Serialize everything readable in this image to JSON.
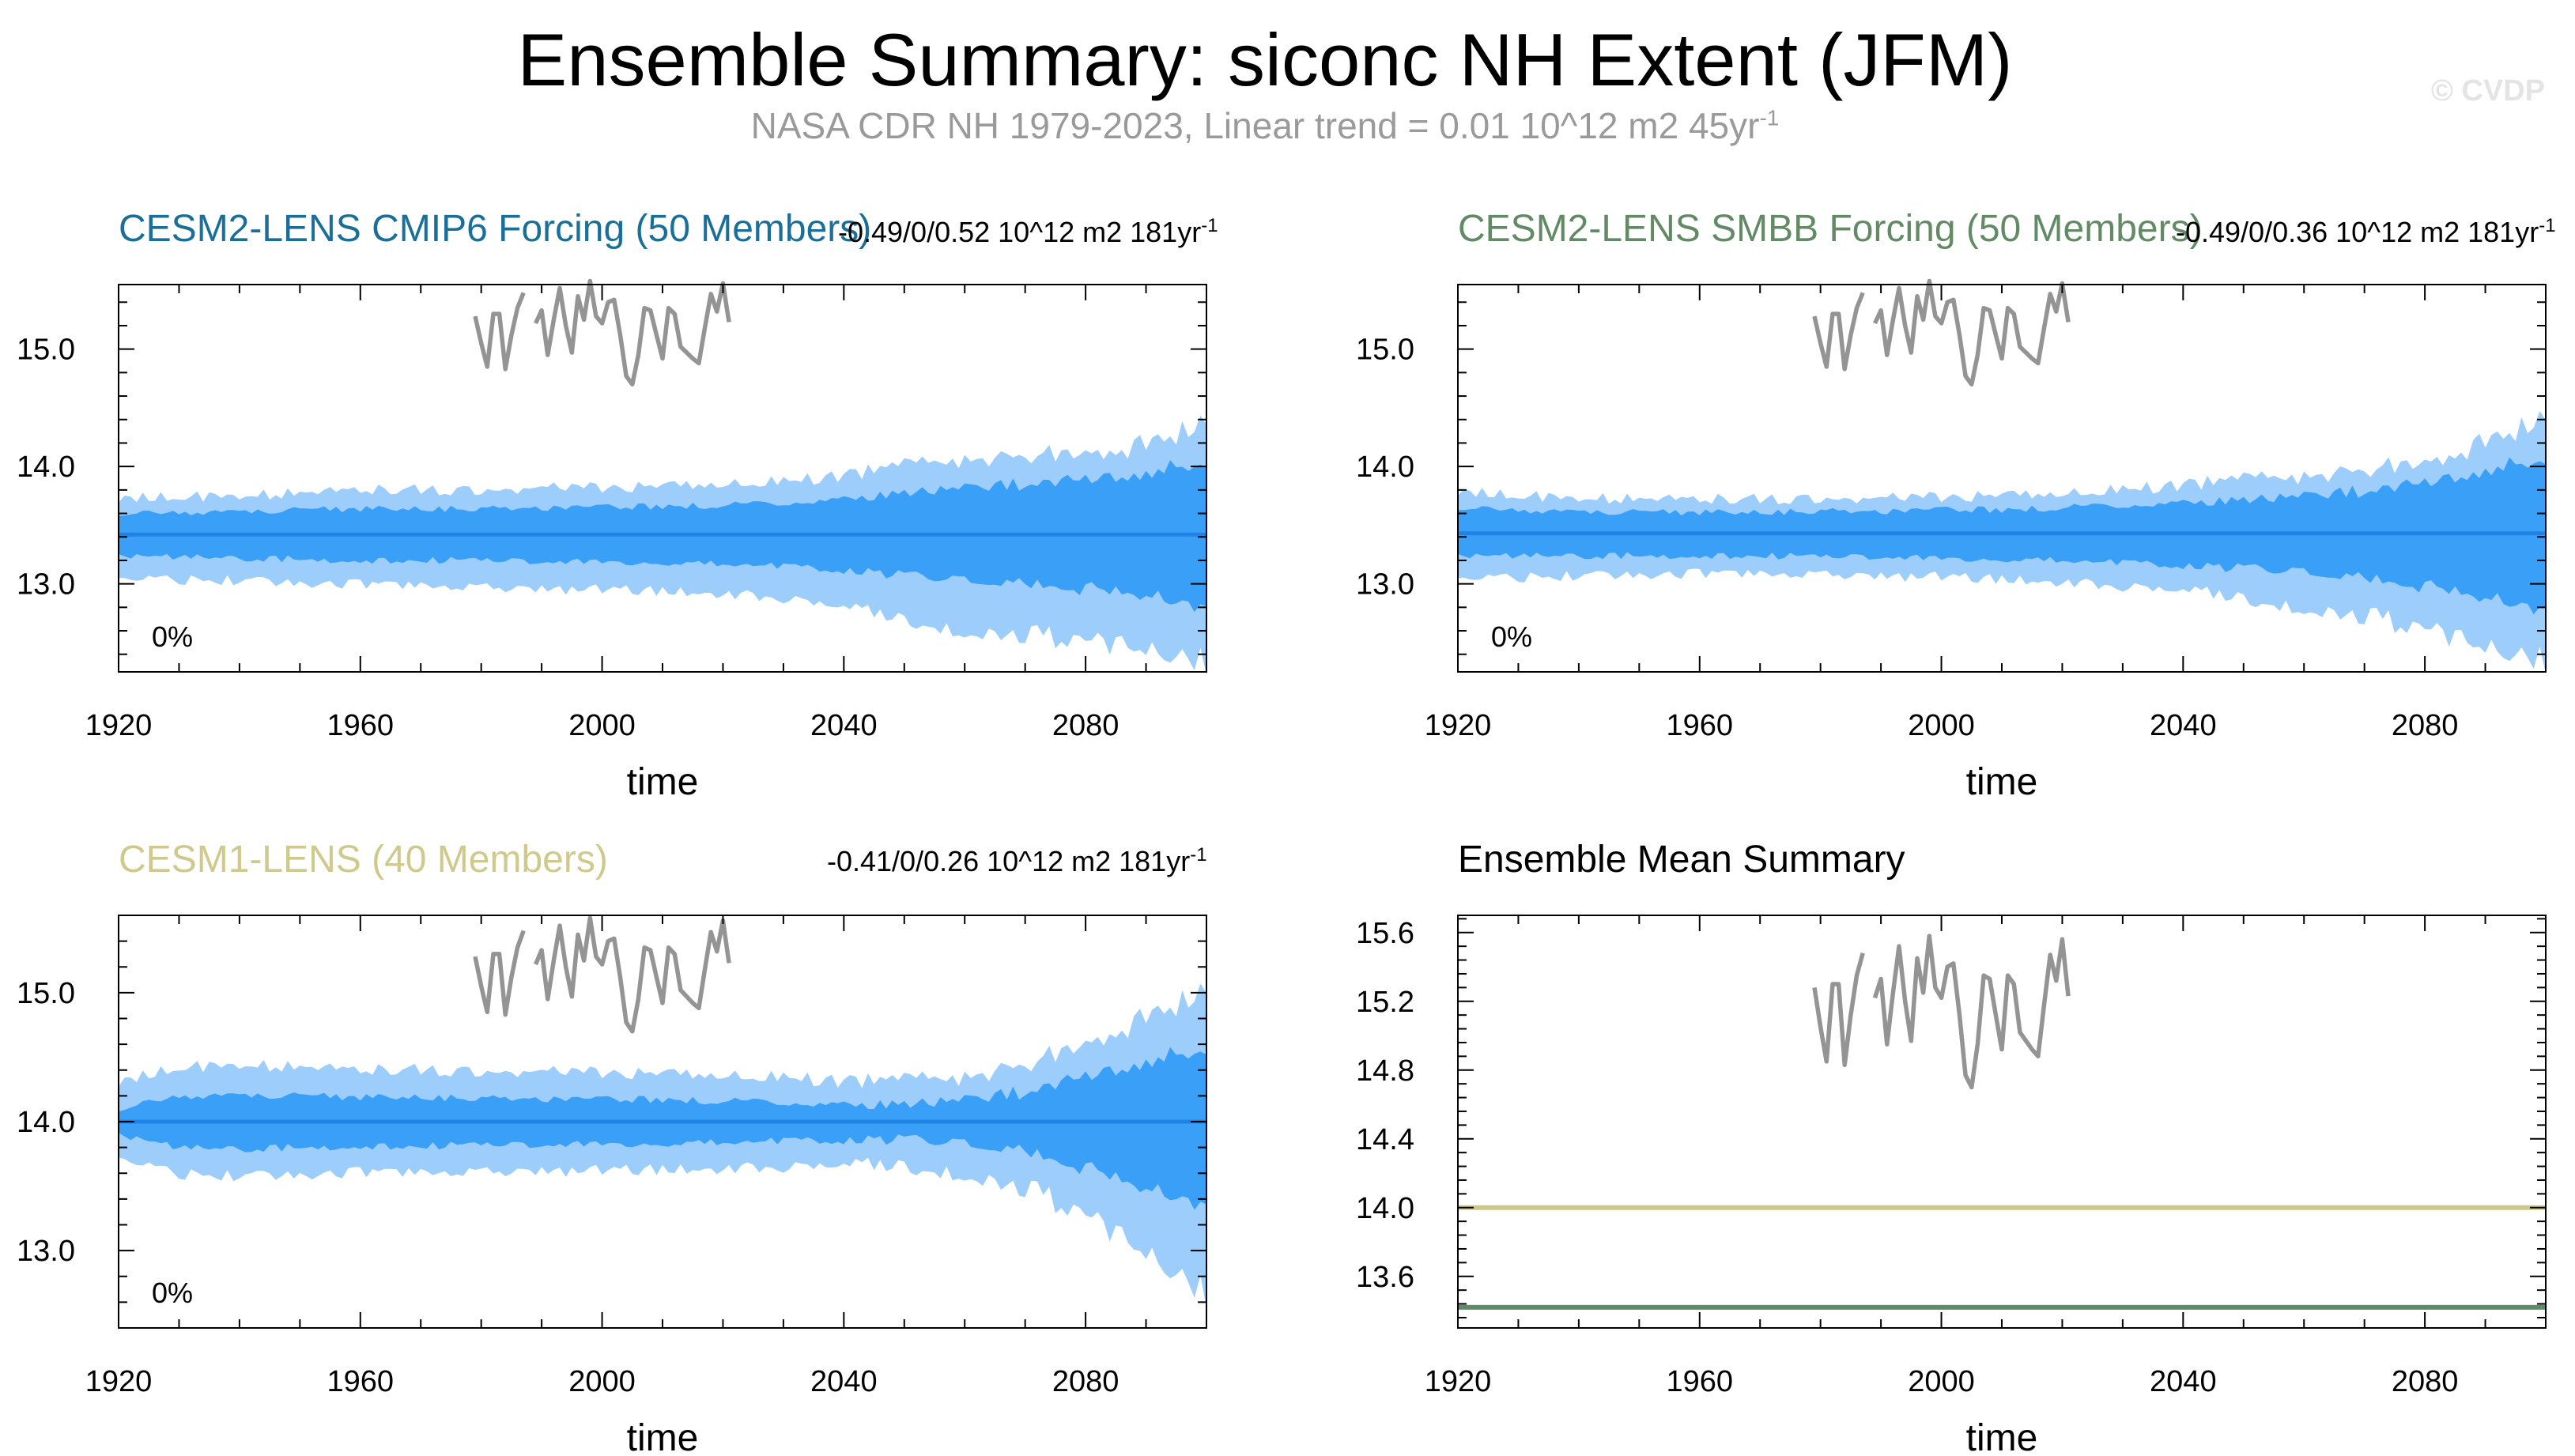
{
  "title": "Ensemble Summary: siconc NH Extent (JFM)",
  "subtitle": "NASA CDR NH 1979-2023, Linear trend = 0.01 10^12 m2 45yr",
  "subtitle_exp": "-1",
  "watermark": "© CVDP",
  "colors": {
    "band_outer": "#9ccdfb",
    "band_inner": "#3aa0f7",
    "ens_mean": "#1f83e6",
    "obs": "#949494",
    "cmip6_title": "#1a6f99",
    "smbb_title": "#628a65",
    "cesm1_title": "#cfc98b",
    "summary_cesm1": "#cbc98a",
    "summary_cesm2": "#5f8a68"
  },
  "chart_data": [
    {
      "id": "cmip6",
      "type": "area",
      "title": "CESM2-LENS CMIP6 Forcing (50 Members)",
      "stat": "-0.49/0/0.52 10^12 m2 181yr",
      "stat_exp": "-1",
      "corner_label": "0%",
      "xlabel": "time",
      "ylabel": "",
      "xlim": [
        1920,
        2100
      ],
      "ylim": [
        12.25,
        15.55
      ],
      "xticks": [
        1920,
        1960,
        2000,
        2040,
        2080
      ],
      "yticks": [
        13.0,
        14.0,
        15.0
      ],
      "ytick_labels": [
        "13.0",
        "14.0",
        "15.0"
      ],
      "ensemble_mean": 13.42,
      "band": {
        "x": [
          1920,
          1930,
          1940,
          1950,
          1960,
          1970,
          1980,
          1990,
          2000,
          2010,
          2020,
          2030,
          2040,
          2050,
          2060,
          2070,
          2080,
          2090,
          2100
        ],
        "outer_hi": [
          13.72,
          13.74,
          13.75,
          13.77,
          13.8,
          13.8,
          13.8,
          13.82,
          13.82,
          13.83,
          13.85,
          13.87,
          13.92,
          14.0,
          14.07,
          14.1,
          14.13,
          14.2,
          14.38
        ],
        "inner_hi": [
          13.6,
          13.61,
          13.62,
          13.63,
          13.64,
          13.64,
          13.64,
          13.65,
          13.65,
          13.66,
          13.67,
          13.69,
          13.72,
          13.77,
          13.82,
          13.85,
          13.88,
          13.94,
          14.05
        ],
        "inner_lo": [
          13.24,
          13.23,
          13.22,
          13.21,
          13.2,
          13.2,
          13.2,
          13.19,
          13.19,
          13.18,
          13.17,
          13.15,
          13.12,
          13.07,
          13.02,
          12.99,
          12.96,
          12.9,
          12.8
        ],
        "outer_lo": [
          13.05,
          13.04,
          13.03,
          13.01,
          12.99,
          12.98,
          12.97,
          12.96,
          12.95,
          12.94,
          12.92,
          12.88,
          12.8,
          12.7,
          12.6,
          12.56,
          12.52,
          12.46,
          12.32
        ]
      },
      "obs": {
        "x": [
          1979,
          1980,
          1981,
          1982,
          1983,
          1984,
          1985,
          1986,
          1987,
          1988,
          1989,
          1990,
          1991,
          1992,
          1993,
          1994,
          1995,
          1996,
          1997,
          1998,
          1999,
          2000,
          2001,
          2002,
          2003,
          2004,
          2005,
          2006,
          2007,
          2008,
          2009,
          2010,
          2011,
          2012,
          2013,
          2014,
          2015,
          2016,
          2017,
          2018,
          2019,
          2020,
          2021,
          2022,
          2023
        ],
        "y": [
          15.28,
          15.05,
          14.85,
          15.3,
          15.3,
          14.83,
          15.12,
          15.35,
          15.48,
          null,
          15.22,
          15.33,
          14.95,
          15.25,
          15.52,
          15.2,
          14.97,
          15.45,
          15.25,
          15.58,
          15.28,
          15.22,
          15.4,
          15.42,
          15.12,
          14.77,
          14.7,
          14.95,
          15.35,
          15.33,
          15.12,
          14.92,
          15.35,
          15.3,
          15.02,
          14.97,
          14.92,
          14.88,
          15.18,
          15.47,
          15.32,
          15.56,
          15.23,
          null,
          null
        ]
      }
    },
    {
      "id": "smbb",
      "type": "area",
      "title": "CESM2-LENS SMBB Forcing (50 Members)",
      "stat": "-0.49/0/0.36 10^12 m2 181yr",
      "stat_exp": "-1",
      "corner_label": "0%",
      "xlabel": "time",
      "ylabel": "",
      "xlim": [
        1920,
        2100
      ],
      "ylim": [
        12.25,
        15.55
      ],
      "xticks": [
        1920,
        1960,
        2000,
        2040,
        2080
      ],
      "yticks": [
        13.0,
        14.0,
        15.0
      ],
      "ytick_labels": [
        "13.0",
        "14.0",
        "15.0"
      ],
      "ensemble_mean": 13.43,
      "band": {
        "x": [
          1920,
          1930,
          1940,
          1950,
          1960,
          1970,
          1980,
          1990,
          2000,
          2010,
          2020,
          2030,
          2040,
          2050,
          2060,
          2070,
          2080,
          2090,
          2100
        ],
        "outer_hi": [
          13.78,
          13.75,
          13.73,
          13.72,
          13.72,
          13.72,
          13.73,
          13.73,
          13.74,
          13.75,
          13.77,
          13.8,
          13.84,
          13.88,
          13.93,
          13.98,
          14.05,
          14.22,
          14.42
        ],
        "inner_hi": [
          13.65,
          13.63,
          13.62,
          13.61,
          13.61,
          13.61,
          13.62,
          13.62,
          13.63,
          13.63,
          13.65,
          13.67,
          13.69,
          13.71,
          13.75,
          13.79,
          13.85,
          13.96,
          14.08
        ],
        "inner_lo": [
          13.24,
          13.24,
          13.24,
          13.24,
          13.24,
          13.24,
          13.23,
          13.23,
          13.22,
          13.21,
          13.2,
          13.18,
          13.16,
          13.13,
          13.09,
          13.04,
          12.98,
          12.88,
          12.78
        ],
        "outer_lo": [
          13.05,
          13.06,
          13.07,
          13.08,
          13.08,
          13.08,
          13.08,
          13.07,
          13.06,
          13.04,
          13.02,
          12.98,
          12.94,
          12.88,
          12.8,
          12.72,
          12.62,
          12.48,
          12.33
        ]
      },
      "obs": {
        "x": [
          1979,
          1980,
          1981,
          1982,
          1983,
          1984,
          1985,
          1986,
          1987,
          1988,
          1989,
          1990,
          1991,
          1992,
          1993,
          1994,
          1995,
          1996,
          1997,
          1998,
          1999,
          2000,
          2001,
          2002,
          2003,
          2004,
          2005,
          2006,
          2007,
          2008,
          2009,
          2010,
          2011,
          2012,
          2013,
          2014,
          2015,
          2016,
          2017,
          2018,
          2019,
          2020,
          2021,
          2022,
          2023
        ],
        "y": [
          15.28,
          15.05,
          14.85,
          15.3,
          15.3,
          14.83,
          15.12,
          15.35,
          15.48,
          null,
          15.22,
          15.33,
          14.95,
          15.25,
          15.52,
          15.2,
          14.97,
          15.45,
          15.25,
          15.58,
          15.28,
          15.22,
          15.4,
          15.42,
          15.12,
          14.77,
          14.7,
          14.95,
          15.35,
          15.33,
          15.12,
          14.92,
          15.35,
          15.3,
          15.02,
          14.97,
          14.92,
          14.88,
          15.18,
          15.47,
          15.32,
          15.56,
          15.23,
          null,
          null
        ]
      }
    },
    {
      "id": "cesm1",
      "type": "area",
      "title": "CESM1-LENS (40 Members)",
      "stat": "-0.41/0/0.26 10^12 m2 181yr",
      "stat_exp": "-1",
      "corner_label": "0%",
      "xlabel": "time",
      "ylabel": "",
      "xlim": [
        1920,
        2100
      ],
      "ylim": [
        12.4,
        15.6
      ],
      "xticks": [
        1920,
        1960,
        2000,
        2040,
        2080
      ],
      "yticks": [
        13.0,
        14.0,
        15.0
      ],
      "ytick_labels": [
        "13.0",
        "14.0",
        "15.0"
      ],
      "ensemble_mean": 14.0,
      "band": {
        "x": [
          1920,
          1930,
          1940,
          1950,
          1960,
          1970,
          1980,
          1990,
          2000,
          2010,
          2020,
          2030,
          2040,
          2050,
          2060,
          2070,
          2080,
          2090,
          2100
        ],
        "outer_hi": [
          14.3,
          14.42,
          14.44,
          14.42,
          14.4,
          14.4,
          14.39,
          14.39,
          14.38,
          14.37,
          14.36,
          14.34,
          14.31,
          14.31,
          14.36,
          14.45,
          14.62,
          14.82,
          15.02
        ],
        "inner_hi": [
          14.1,
          14.2,
          14.21,
          14.2,
          14.19,
          14.19,
          14.18,
          14.18,
          14.17,
          14.17,
          14.16,
          14.15,
          14.13,
          14.13,
          14.17,
          14.23,
          14.34,
          14.46,
          14.58
        ],
        "inner_lo": [
          13.9,
          13.8,
          13.79,
          13.8,
          13.81,
          13.81,
          13.82,
          13.82,
          13.83,
          13.83,
          13.84,
          13.85,
          13.86,
          13.86,
          13.82,
          13.76,
          13.64,
          13.48,
          13.35
        ],
        "outer_lo": [
          13.72,
          13.6,
          13.58,
          13.59,
          13.6,
          13.6,
          13.61,
          13.62,
          13.62,
          13.63,
          13.64,
          13.65,
          13.66,
          13.66,
          13.6,
          13.48,
          13.28,
          13.0,
          12.65
        ]
      },
      "obs": {
        "x": [
          1979,
          1980,
          1981,
          1982,
          1983,
          1984,
          1985,
          1986,
          1987,
          1988,
          1989,
          1990,
          1991,
          1992,
          1993,
          1994,
          1995,
          1996,
          1997,
          1998,
          1999,
          2000,
          2001,
          2002,
          2003,
          2004,
          2005,
          2006,
          2007,
          2008,
          2009,
          2010,
          2011,
          2012,
          2013,
          2014,
          2015,
          2016,
          2017,
          2018,
          2019,
          2020,
          2021,
          2022,
          2023
        ],
        "y": [
          15.28,
          15.05,
          14.85,
          15.3,
          15.3,
          14.83,
          15.12,
          15.35,
          15.48,
          null,
          15.22,
          15.33,
          14.95,
          15.25,
          15.52,
          15.2,
          14.97,
          15.45,
          15.25,
          15.58,
          15.28,
          15.22,
          15.4,
          15.42,
          15.12,
          14.77,
          14.7,
          14.95,
          15.35,
          15.33,
          15.12,
          14.92,
          15.35,
          15.3,
          15.02,
          14.97,
          14.92,
          14.88,
          15.18,
          15.47,
          15.32,
          15.56,
          15.23,
          null,
          null
        ]
      }
    },
    {
      "id": "summary",
      "type": "line",
      "title": "Ensemble Mean Summary",
      "xlabel": "time",
      "ylabel": "",
      "xlim": [
        1920,
        2100
      ],
      "ylim": [
        13.3,
        15.7
      ],
      "xticks": [
        1920,
        1960,
        2000,
        2040,
        2080
      ],
      "yticks": [
        13.6,
        14.0,
        14.4,
        14.8,
        15.2,
        15.6
      ],
      "ytick_labels": [
        "13.6",
        "14.0",
        "14.4",
        "14.8",
        "15.2",
        "15.6"
      ],
      "series": [
        {
          "color_key": "summary_cesm1",
          "x": [
            1920,
            2100
          ],
          "y": [
            14.0,
            14.0
          ]
        },
        {
          "color_key": "summary_cesm2",
          "x": [
            1920,
            2100
          ],
          "y": [
            13.42,
            13.42
          ]
        }
      ],
      "obs": {
        "x": [
          1979,
          1980,
          1981,
          1982,
          1983,
          1984,
          1985,
          1986,
          1987,
          1988,
          1989,
          1990,
          1991,
          1992,
          1993,
          1994,
          1995,
          1996,
          1997,
          1998,
          1999,
          2000,
          2001,
          2002,
          2003,
          2004,
          2005,
          2006,
          2007,
          2008,
          2009,
          2010,
          2011,
          2012,
          2013,
          2014,
          2015,
          2016,
          2017,
          2018,
          2019,
          2020,
          2021,
          2022,
          2023
        ],
        "y": [
          15.28,
          15.05,
          14.85,
          15.3,
          15.3,
          14.83,
          15.12,
          15.35,
          15.48,
          null,
          15.22,
          15.33,
          14.95,
          15.25,
          15.52,
          15.2,
          14.97,
          15.45,
          15.25,
          15.58,
          15.28,
          15.22,
          15.4,
          15.42,
          15.12,
          14.77,
          14.7,
          14.95,
          15.35,
          15.33,
          15.12,
          14.92,
          15.35,
          15.3,
          15.02,
          14.97,
          14.92,
          14.88,
          15.18,
          15.47,
          15.32,
          15.56,
          15.23,
          null,
          null
        ]
      }
    }
  ]
}
